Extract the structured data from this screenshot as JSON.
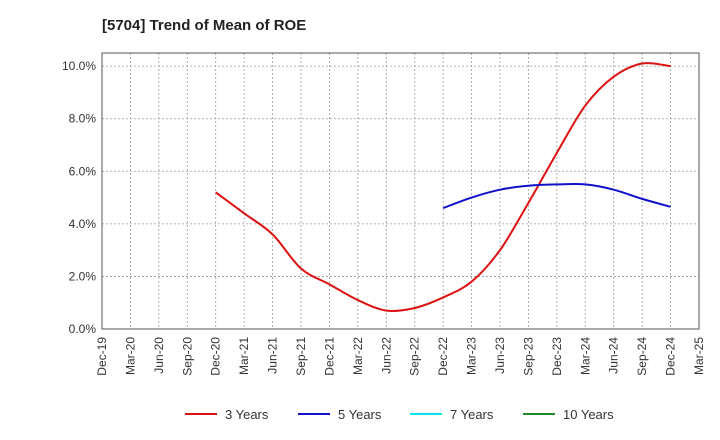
{
  "chart_data": {
    "type": "line",
    "title": "[5704]  Trend of Mean of ROE",
    "x_categories": [
      "Dec-19",
      "Mar-20",
      "Jun-20",
      "Sep-20",
      "Dec-20",
      "Mar-21",
      "Jun-21",
      "Sep-21",
      "Dec-21",
      "Mar-22",
      "Jun-22",
      "Sep-22",
      "Dec-22",
      "Mar-23",
      "Jun-23",
      "Sep-23",
      "Dec-23",
      "Mar-24",
      "Jun-24",
      "Sep-24",
      "Dec-24",
      "Mar-25"
    ],
    "y_ticks": [
      "0.0%",
      "2.0%",
      "4.0%",
      "6.0%",
      "8.0%",
      "10.0%"
    ],
    "ylim": [
      0,
      10.5
    ],
    "y_unit": "%",
    "grid": true,
    "legend_position": "bottom",
    "series": [
      {
        "name": "3 Years",
        "color": "#dd1111",
        "points": [
          {
            "x": "Dec-20",
            "y": 5.2
          },
          {
            "x": "Mar-21",
            "y": 4.4
          },
          {
            "x": "Jun-21",
            "y": 3.6
          },
          {
            "x": "Sep-21",
            "y": 2.3
          },
          {
            "x": "Dec-21",
            "y": 1.7
          },
          {
            "x": "Mar-22",
            "y": 1.1
          },
          {
            "x": "Jun-22",
            "y": 0.7
          },
          {
            "x": "Sep-22",
            "y": 0.8
          },
          {
            "x": "Dec-22",
            "y": 1.2
          },
          {
            "x": "Mar-23",
            "y": 1.8
          },
          {
            "x": "Jun-23",
            "y": 3.0
          },
          {
            "x": "Sep-23",
            "y": 4.8
          },
          {
            "x": "Dec-23",
            "y": 6.7
          },
          {
            "x": "Mar-24",
            "y": 8.5
          },
          {
            "x": "Jun-24",
            "y": 9.6
          },
          {
            "x": "Sep-24",
            "y": 10.1
          },
          {
            "x": "Dec-24",
            "y": 10.0
          }
        ]
      },
      {
        "name": "5 Years",
        "color": "#1111cc",
        "points": [
          {
            "x": "Dec-22",
            "y": 4.6
          },
          {
            "x": "Mar-23",
            "y": 5.0
          },
          {
            "x": "Jun-23",
            "y": 5.3
          },
          {
            "x": "Sep-23",
            "y": 5.45
          },
          {
            "x": "Dec-23",
            "y": 5.5
          },
          {
            "x": "Mar-24",
            "y": 5.5
          },
          {
            "x": "Jun-24",
            "y": 5.3
          },
          {
            "x": "Sep-24",
            "y": 4.95
          },
          {
            "x": "Dec-24",
            "y": 4.65
          }
        ]
      },
      {
        "name": "7 Years",
        "color": "#00e5ee",
        "points": []
      },
      {
        "name": "10 Years",
        "color": "#228822",
        "points": []
      }
    ]
  }
}
